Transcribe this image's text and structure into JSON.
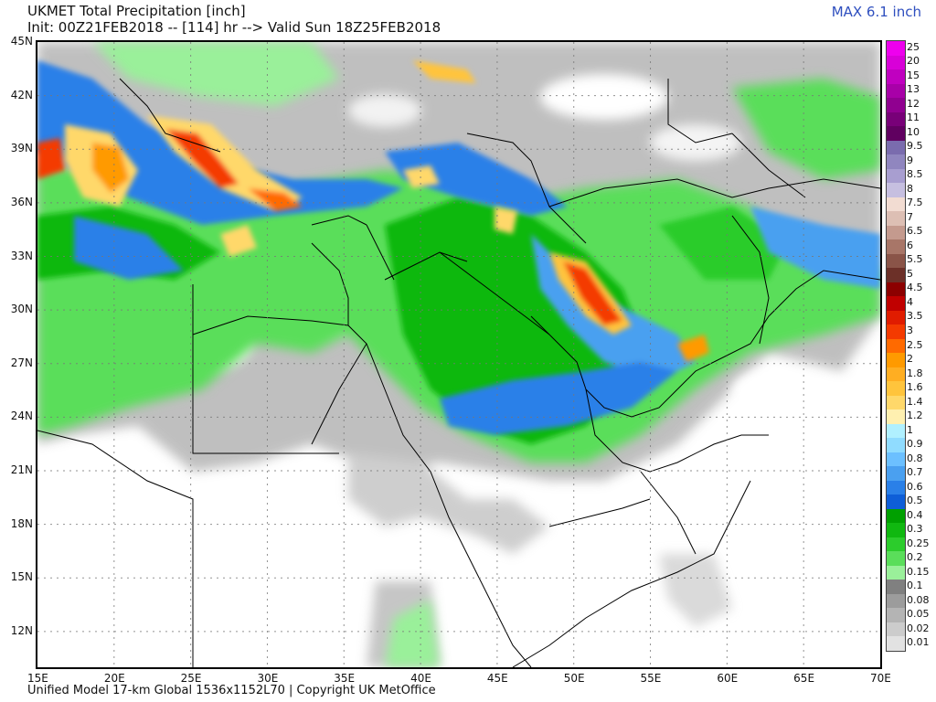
{
  "header": {
    "title_line1": "UKMET Total Precipitation [inch]",
    "title_line2": "Init: 00Z21FEB2018 -- [114] hr --> Valid Sun 18Z25FEB2018",
    "max_label": "MAX 6.1 inch",
    "max_color": "#2f4fbf"
  },
  "map": {
    "lat_range": [
      10,
      45
    ],
    "lon_range": [
      15,
      70
    ],
    "lat_labels": [
      "45N",
      "42N",
      "39N",
      "36N",
      "33N",
      "30N",
      "27N",
      "24N",
      "21N",
      "18N",
      "15N",
      "12N"
    ],
    "lat_values": [
      45,
      42,
      39,
      36,
      33,
      30,
      27,
      24,
      21,
      18,
      15,
      12
    ],
    "lon_labels": [
      "15E",
      "20E",
      "25E",
      "30E",
      "35E",
      "40E",
      "45E",
      "50E",
      "55E",
      "60E",
      "65E",
      "70E"
    ],
    "lon_values": [
      15,
      20,
      25,
      30,
      35,
      40,
      45,
      50,
      55,
      60,
      65,
      70
    ],
    "gridlines": true
  },
  "legend": {
    "labels": [
      "25",
      "20",
      "15",
      "13",
      "12",
      "11",
      "10",
      "9.5",
      "9",
      "8.5",
      "8",
      "7.5",
      "7",
      "6.5",
      "6",
      "5.5",
      "5",
      "4.5",
      "4",
      "3.5",
      "3",
      "2.5",
      "2",
      "1.8",
      "1.6",
      "1.4",
      "1.2",
      "1",
      "0.9",
      "0.8",
      "0.7",
      "0.6",
      "0.5",
      "0.4",
      "0.3",
      "0.25",
      "0.2",
      "0.15",
      "0.1",
      "0.08",
      "0.05",
      "0.02",
      "0.01"
    ],
    "colors": [
      "#ee00ee",
      "#d800d8",
      "#c000c0",
      "#a800a8",
      "#900090",
      "#780078",
      "#600060",
      "#7a6cae",
      "#9086bf",
      "#a89ed0",
      "#c6bfe0",
      "#f2dcd2",
      "#ddbfb4",
      "#c49a8e",
      "#a87668",
      "#8a5448",
      "#6c3028",
      "#8c0000",
      "#c00000",
      "#e01c00",
      "#f43a00",
      "#ff6a00",
      "#ff9a00",
      "#ffae22",
      "#ffc43c",
      "#ffd86a",
      "#fff0b0",
      "#b0f0ff",
      "#90dcff",
      "#6cc0ff",
      "#4aa0f0",
      "#2a80e8",
      "#0e5ed8",
      "#00a000",
      "#10b810",
      "#2ccc2c",
      "#5ade5a",
      "#9af09a",
      "#808080",
      "#9c9c9c",
      "#b4b4b4",
      "#cccccc",
      "#e2e2e2"
    ]
  },
  "footer": {
    "text": "Unified Model 17-km Global 1536x1152L70 | Copyright UK MetOffice"
  }
}
